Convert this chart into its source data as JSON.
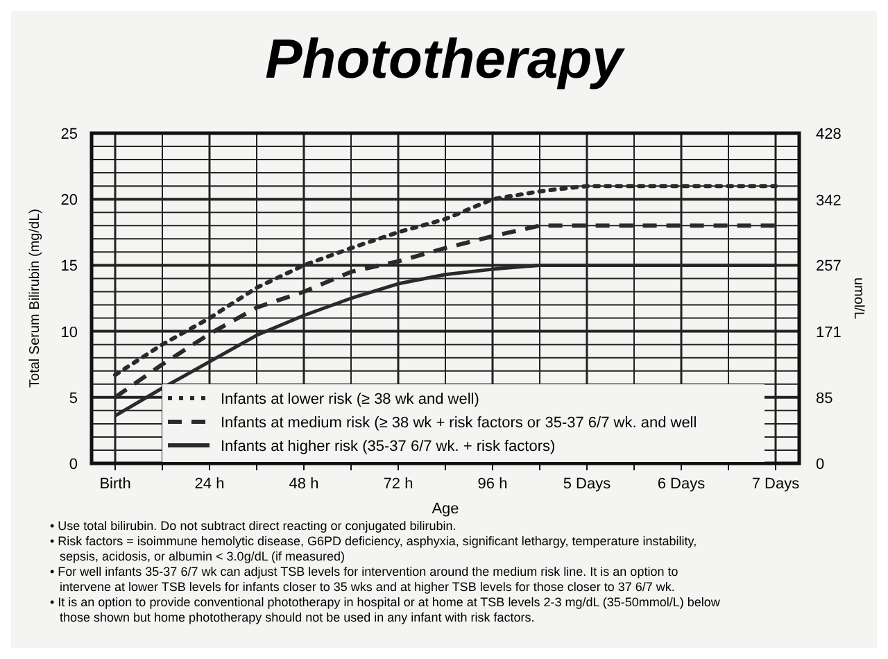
{
  "chart_data": {
    "type": "line",
    "title": "Phototherapy",
    "xlabel": "Age",
    "ylabel": "Total Serum Bilirubin (mg/dL)",
    "y2label": "umol/L",
    "categories": [
      "Birth",
      null,
      "24 h",
      null,
      "48 h",
      null,
      "72 h",
      null,
      "96 h",
      null,
      "5 Days",
      null,
      "6 Days",
      null,
      "7 Days"
    ],
    "series": [
      {
        "name": "Infants at lower risk (≥ 38 wk and well)",
        "color": "#2a2a2a",
        "line_style": "dotted",
        "values": [
          6.7,
          9,
          11,
          13.3,
          15,
          16.3,
          17.5,
          18.5,
          20,
          20.6,
          21,
          21,
          21,
          21,
          21
        ]
      },
      {
        "name": "Infants at medium risk (≥ 38 wk + risk factors or 35-37 6/7 wk. and well",
        "color": "#2a2a2a",
        "line_style": "dashed",
        "values": [
          5,
          7.5,
          9.8,
          11.8,
          13,
          14.5,
          15.3,
          16.3,
          17.2,
          18,
          18,
          18,
          18,
          18,
          18
        ]
      },
      {
        "name": "Infants at higher risk (35-37 6/7 wk. + risk factors)",
        "color": "#2a2a2a",
        "line_style": "solid",
        "values": [
          3.6,
          5.7,
          7.7,
          9.7,
          11.2,
          12.5,
          13.6,
          14.3,
          14.7,
          15,
          15,
          15,
          15,
          15,
          15
        ]
      }
    ],
    "ylim": [
      0,
      25
    ],
    "yticks": [
      0,
      {
        "value": 1,
        "label": null
      },
      {
        "value": 2,
        "label": null
      },
      {
        "value": 3,
        "label": null
      },
      {
        "value": 4,
        "label": null
      },
      5,
      {
        "value": 6,
        "label": null
      },
      {
        "value": 7,
        "label": null
      },
      {
        "value": 8,
        "label": null
      },
      {
        "value": 9,
        "label": null
      },
      10,
      {
        "value": 11,
        "label": null
      },
      {
        "value": 12,
        "label": null
      },
      {
        "value": 13,
        "label": null
      },
      {
        "value": 14,
        "label": null
      },
      15,
      {
        "value": 16,
        "label": null
      },
      {
        "value": 17,
        "label": null
      },
      {
        "value": 18,
        "label": null
      },
      {
        "value": 19,
        "label": null
      },
      20,
      {
        "value": 21,
        "label": null
      },
      {
        "value": 22,
        "label": null
      },
      {
        "value": 23,
        "label": null
      },
      {
        "value": 24,
        "label": null
      },
      25
    ],
    "y2lim": [
      0,
      428
    ],
    "y2ticks": [
      0,
      85,
      171,
      257,
      342,
      428
    ],
    "grid": true,
    "legend": "bottom",
    "marker": "none",
    "annotations": [
      "• Use total bilirubin.  Do not subtract direct reacting or conjugated bilirubin.",
      "• Risk factors = isoimmune hemolytic disease, G6PD deficiency, asphyxia, significant lethargy, temperature instability, sepsis, acidosis, or albumin < 3.0g/dL (if measured)",
      "• For well infants 35-37 6/7 wk can adjust TSB levels for intervention around the medium risk line.  It is an option to intervene at lower TSB levels for infants closer to 35 wks and at higher TSB levels for those closer to 37 6/7 wk.",
      "• It is an option to provide conventional phototherapy in hospital or at home at TSB levels 2-3 mg/dL (35-50mmol/L) below those shown but home phototherapy should not be used in any infant with risk factors."
    ]
  }
}
